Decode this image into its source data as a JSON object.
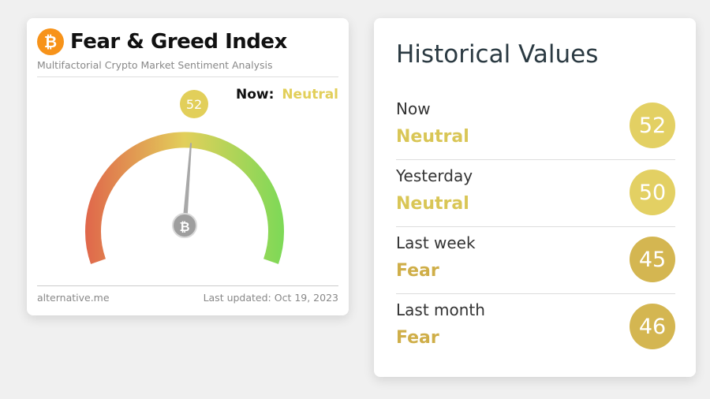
{
  "fear_greed": {
    "title": "Fear & Greed Index",
    "subtitle": "Multifactorial Crypto Market Sentiment Analysis",
    "logo_symbol": "₿",
    "now_label": "Now:",
    "now_value": "Neutral",
    "value": 52,
    "value_label": "52",
    "pivot_symbol": "₿",
    "source": "alternative.me",
    "last_updated": "Last updated: Oct 19, 2023",
    "colors": {
      "fear": "#e0684b",
      "neutral": "#e2cf5a",
      "greed": "#7ed957",
      "logo": "#f7931a"
    }
  },
  "historical": {
    "title": "Historical Values",
    "rows": [
      {
        "period": "Now",
        "classification": "Neutral",
        "value": "52",
        "circle_color": "#e3d063",
        "text_color": "#d9c656"
      },
      {
        "period": "Yesterday",
        "classification": "Neutral",
        "value": "50",
        "circle_color": "#e3d063",
        "text_color": "#d9c656"
      },
      {
        "period": "Last week",
        "classification": "Fear",
        "value": "45",
        "circle_color": "#d4b651",
        "text_color": "#cfae48"
      },
      {
        "period": "Last month",
        "classification": "Fear",
        "value": "46",
        "circle_color": "#d4b651",
        "text_color": "#cfae48"
      }
    ]
  }
}
